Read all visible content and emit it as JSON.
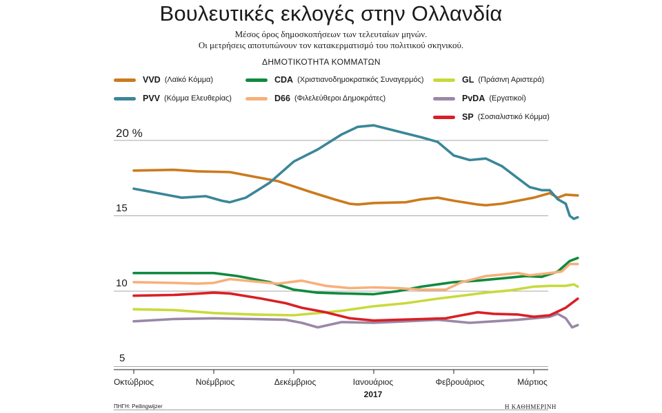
{
  "header": {
    "title": "Βουλευτικές εκλογές στην Ολλανδία",
    "subtitle_line1": "Μέσος όρος δημοσκοπήσεων των τελευταίων μηνών.",
    "subtitle_line2": "Οι μετρήσεις αποτυπώνουν τον κατακερματισμό του πολιτικού σκηνικού.",
    "section_label": "ΔΗΜΟΤΙΚΟΤΗΤΑ ΚΟΜΜΑΤΩΝ"
  },
  "legend": [
    {
      "abbr": "VVD",
      "name": "(Λαϊκό Κόμμα)",
      "color": "#cc7a1e"
    },
    {
      "abbr": "PVV",
      "name": "(Κόμμα Ελευθερίας)",
      "color": "#3a8698"
    },
    {
      "abbr": "CDA",
      "name": "(Χριστιανοδημοκρατικός Συναγερμός)",
      "color": "#0f8a3e"
    },
    {
      "abbr": "D66",
      "name": "(Φιλελεύθεροι Δημοκράτες)",
      "color": "#f7b07a"
    },
    {
      "abbr": "GL",
      "name": "(Πράσινη Αριστερά)",
      "color": "#c8da3c"
    },
    {
      "abbr": "PvDA",
      "name": "(Εργατικοί)",
      "color": "#9a87a6"
    },
    {
      "abbr": "SP",
      "name": "(Σοσιαλιστικό Κόμμα)",
      "color": "#d91f26"
    }
  ],
  "footer": {
    "source": "ΠΗΓΗ: Peilingwijzer",
    "brand": "Η ΚΑΘΗΜΕΡΙΝΗ"
  },
  "chart_data": {
    "type": "line",
    "title": "Βουλευτικές εκλογές στην Ολλανδία",
    "ylabel": "%",
    "ylim": [
      5,
      21.5
    ],
    "xlim": [
      0,
      5.55
    ],
    "yticks": [
      {
        "value": 20,
        "label": "20 %"
      },
      {
        "value": 15,
        "label": "15"
      },
      {
        "value": 10,
        "label": "10"
      },
      {
        "value": 5,
        "label": "5"
      }
    ],
    "xticks": [
      {
        "value": 0,
        "label": "Οκτώβριος"
      },
      {
        "value": 1,
        "label": "Νοέμβριος"
      },
      {
        "value": 2,
        "label": "Δεκέμβριος"
      },
      {
        "value": 3,
        "label": "Ιανουάριος"
      },
      {
        "value": 4,
        "label": "Φεβρουάριος"
      },
      {
        "value": 5,
        "label": "Μάρτιος"
      }
    ],
    "year_label": "2017",
    "grid": "horizontal",
    "series": [
      {
        "name": "VVD",
        "color": "#cc7a1e",
        "points": [
          [
            0,
            18.0
          ],
          [
            0.5,
            18.05
          ],
          [
            0.8,
            17.95
          ],
          [
            1.2,
            17.9
          ],
          [
            1.5,
            17.6
          ],
          [
            1.8,
            17.3
          ],
          [
            2.2,
            16.6
          ],
          [
            2.5,
            16.1
          ],
          [
            2.7,
            15.8
          ],
          [
            2.8,
            15.75
          ],
          [
            3.0,
            15.85
          ],
          [
            3.4,
            15.9
          ],
          [
            3.6,
            16.1
          ],
          [
            3.8,
            16.2
          ],
          [
            4.0,
            16.0
          ],
          [
            4.3,
            15.75
          ],
          [
            4.4,
            15.7
          ],
          [
            4.6,
            15.8
          ],
          [
            4.8,
            16.0
          ],
          [
            5.0,
            16.2
          ],
          [
            5.2,
            16.5
          ],
          [
            5.3,
            16.2
          ],
          [
            5.4,
            16.4
          ],
          [
            5.55,
            16.35
          ]
        ]
      },
      {
        "name": "PVV",
        "color": "#3a8698",
        "points": [
          [
            0,
            16.8
          ],
          [
            0.3,
            16.5
          ],
          [
            0.6,
            16.2
          ],
          [
            0.9,
            16.3
          ],
          [
            1.1,
            16.0
          ],
          [
            1.2,
            15.9
          ],
          [
            1.4,
            16.2
          ],
          [
            1.7,
            17.2
          ],
          [
            2.0,
            18.6
          ],
          [
            2.3,
            19.4
          ],
          [
            2.6,
            20.4
          ],
          [
            2.8,
            20.9
          ],
          [
            3.0,
            21.0
          ],
          [
            3.3,
            20.6
          ],
          [
            3.6,
            20.2
          ],
          [
            3.8,
            19.9
          ],
          [
            4.0,
            19.0
          ],
          [
            4.2,
            18.7
          ],
          [
            4.4,
            18.8
          ],
          [
            4.6,
            18.3
          ],
          [
            4.8,
            17.5
          ],
          [
            4.95,
            16.9
          ],
          [
            5.1,
            16.7
          ],
          [
            5.2,
            16.7
          ],
          [
            5.3,
            16.1
          ],
          [
            5.4,
            15.8
          ],
          [
            5.45,
            15.0
          ],
          [
            5.5,
            14.8
          ],
          [
            5.55,
            14.9
          ]
        ]
      },
      {
        "name": "CDA",
        "color": "#0f8a3e",
        "points": [
          [
            0,
            11.2
          ],
          [
            0.5,
            11.2
          ],
          [
            1.0,
            11.2
          ],
          [
            1.3,
            11.0
          ],
          [
            1.7,
            10.6
          ],
          [
            2.0,
            10.1
          ],
          [
            2.3,
            9.9
          ],
          [
            2.6,
            9.85
          ],
          [
            3.0,
            9.8
          ],
          [
            3.3,
            10.0
          ],
          [
            3.6,
            10.3
          ],
          [
            4.0,
            10.6
          ],
          [
            4.3,
            10.7
          ],
          [
            4.6,
            10.85
          ],
          [
            4.9,
            11.0
          ],
          [
            5.1,
            10.95
          ],
          [
            5.3,
            11.3
          ],
          [
            5.45,
            12.0
          ],
          [
            5.55,
            12.2
          ]
        ]
      },
      {
        "name": "D66",
        "color": "#f7b07a",
        "points": [
          [
            0,
            10.6
          ],
          [
            0.5,
            10.55
          ],
          [
            0.8,
            10.5
          ],
          [
            1.0,
            10.55
          ],
          [
            1.2,
            10.8
          ],
          [
            1.5,
            10.65
          ],
          [
            1.8,
            10.5
          ],
          [
            2.1,
            10.7
          ],
          [
            2.4,
            10.35
          ],
          [
            2.7,
            10.2
          ],
          [
            3.0,
            10.25
          ],
          [
            3.3,
            10.2
          ],
          [
            3.6,
            10.1
          ],
          [
            3.9,
            10.1
          ],
          [
            4.1,
            10.6
          ],
          [
            4.4,
            11.0
          ],
          [
            4.6,
            11.1
          ],
          [
            4.8,
            11.2
          ],
          [
            4.95,
            11.05
          ],
          [
            5.2,
            11.2
          ],
          [
            5.35,
            11.3
          ],
          [
            5.45,
            11.8
          ],
          [
            5.55,
            11.8
          ]
        ]
      },
      {
        "name": "GL",
        "color": "#c8da3c",
        "points": [
          [
            0,
            8.8
          ],
          [
            0.5,
            8.75
          ],
          [
            1.0,
            8.55
          ],
          [
            1.5,
            8.45
          ],
          [
            2.0,
            8.4
          ],
          [
            2.3,
            8.55
          ],
          [
            2.6,
            8.7
          ],
          [
            3.0,
            9.0
          ],
          [
            3.4,
            9.2
          ],
          [
            3.8,
            9.5
          ],
          [
            4.1,
            9.7
          ],
          [
            4.4,
            9.9
          ],
          [
            4.7,
            10.05
          ],
          [
            5.0,
            10.3
          ],
          [
            5.2,
            10.35
          ],
          [
            5.4,
            10.35
          ],
          [
            5.5,
            10.45
          ],
          [
            5.55,
            10.3
          ]
        ]
      },
      {
        "name": "PvDA",
        "color": "#9a87a6",
        "points": [
          [
            0,
            8.0
          ],
          [
            0.5,
            8.15
          ],
          [
            1.0,
            8.2
          ],
          [
            1.5,
            8.15
          ],
          [
            1.9,
            8.1
          ],
          [
            2.1,
            7.9
          ],
          [
            2.3,
            7.6
          ],
          [
            2.6,
            7.95
          ],
          [
            3.0,
            7.9
          ],
          [
            3.4,
            8.0
          ],
          [
            3.8,
            8.1
          ],
          [
            4.2,
            7.9
          ],
          [
            4.5,
            8.0
          ],
          [
            4.8,
            8.1
          ],
          [
            5.0,
            8.2
          ],
          [
            5.2,
            8.3
          ],
          [
            5.3,
            8.5
          ],
          [
            5.4,
            8.2
          ],
          [
            5.48,
            7.6
          ],
          [
            5.55,
            7.75
          ]
        ]
      },
      {
        "name": "SP",
        "color": "#d91f26",
        "points": [
          [
            0,
            9.7
          ],
          [
            0.5,
            9.75
          ],
          [
            1.0,
            9.9
          ],
          [
            1.2,
            9.85
          ],
          [
            1.6,
            9.5
          ],
          [
            1.9,
            9.2
          ],
          [
            2.1,
            8.9
          ],
          [
            2.4,
            8.6
          ],
          [
            2.7,
            8.2
          ],
          [
            3.0,
            8.05
          ],
          [
            3.3,
            8.1
          ],
          [
            3.6,
            8.15
          ],
          [
            3.9,
            8.2
          ],
          [
            4.1,
            8.4
          ],
          [
            4.3,
            8.6
          ],
          [
            4.5,
            8.5
          ],
          [
            4.8,
            8.45
          ],
          [
            5.0,
            8.3
          ],
          [
            5.2,
            8.4
          ],
          [
            5.4,
            8.9
          ],
          [
            5.55,
            9.5
          ]
        ]
      }
    ]
  }
}
